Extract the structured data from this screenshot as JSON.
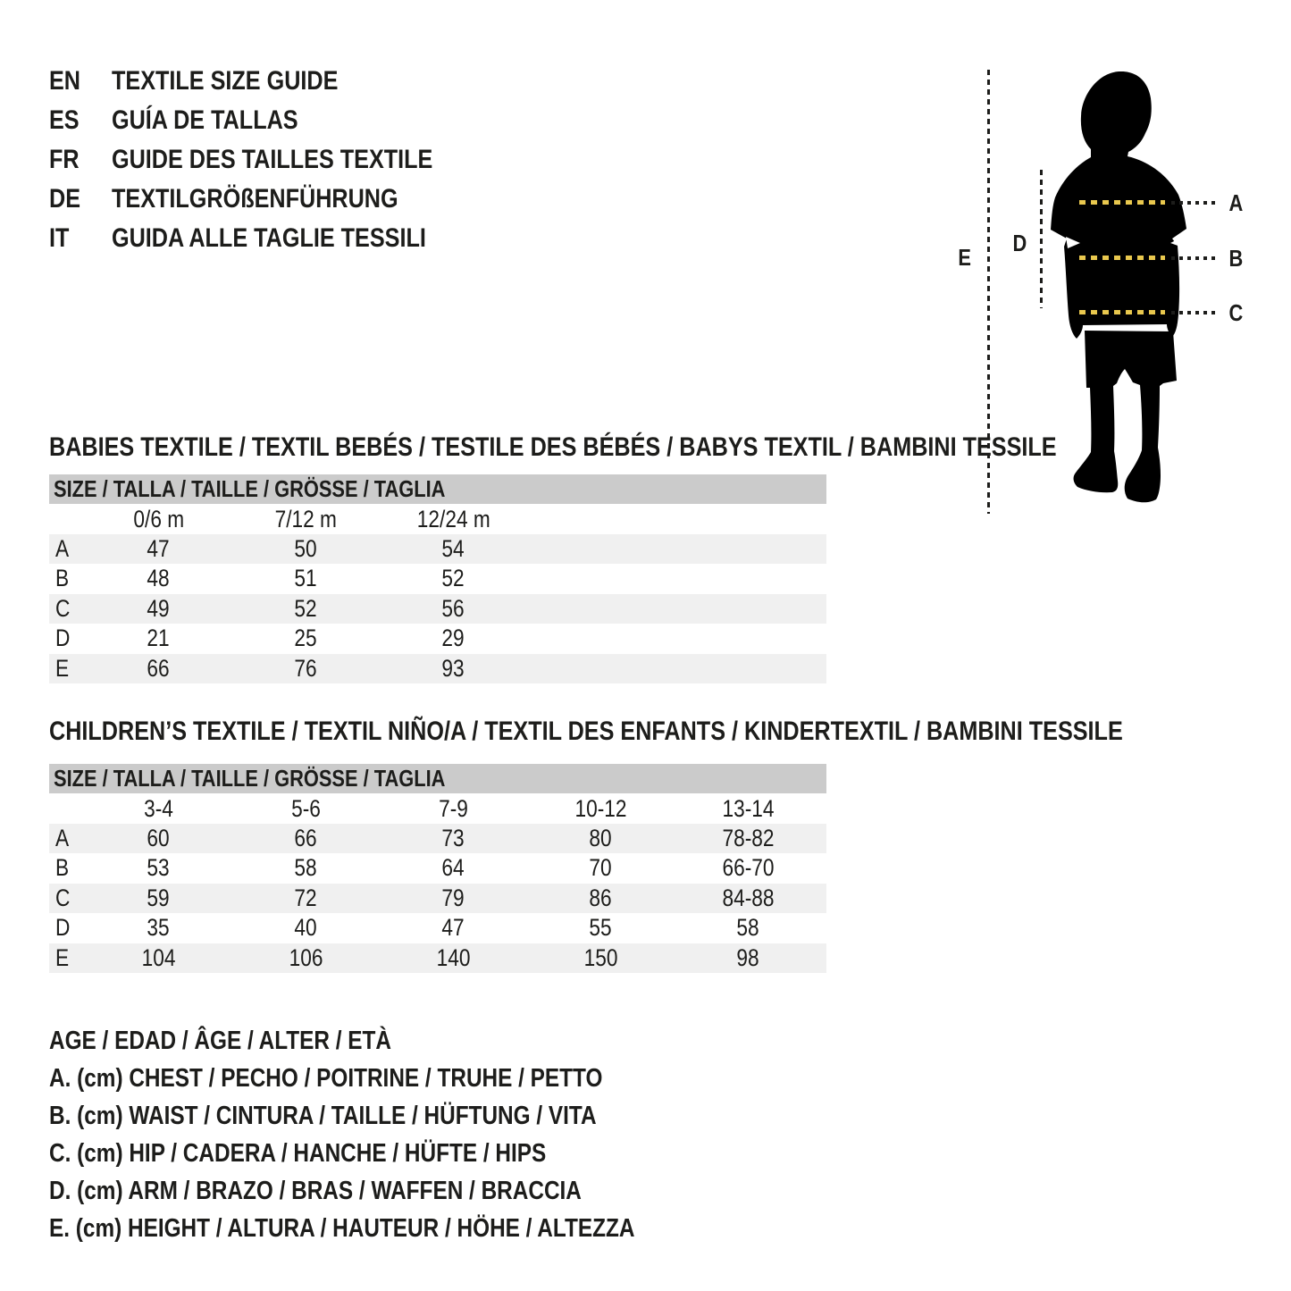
{
  "colors": {
    "text": "#1d1d1b",
    "bar_bg": "#cbcbcb",
    "row_shade": "#f0f0f0",
    "dash_yellow": "#e9c84e",
    "silhouette": "#000000",
    "page_bg": "#ffffff"
  },
  "header": {
    "languages": [
      {
        "code": "EN",
        "title": "TEXTILE SIZE GUIDE"
      },
      {
        "code": "ES",
        "title": "GUÍA DE TALLAS"
      },
      {
        "code": "FR",
        "title": "GUIDE DES TAILLES TEXTILE"
      },
      {
        "code": "DE",
        "title": "TEXTILGRÖßENFÜHRUNG"
      },
      {
        "code": "IT",
        "title": "GUIDA ALLE TAGLIE TESSILI"
      }
    ]
  },
  "figure": {
    "measure_labels": [
      "A",
      "B",
      "C",
      "D",
      "E"
    ]
  },
  "babies": {
    "title": "BABIES TEXTILE / TEXTIL BEBÉS / TESTILE DES BÉBÉS / BABYS TEXTIL / BAMBINI TESSILE",
    "size_header": "SIZE / TALLA / TAILLE / GRÖSSE / TAGLIA",
    "columns": [
      "0/6 m",
      "7/12 m",
      "12/24 m"
    ],
    "rows": [
      {
        "label": "A",
        "values": [
          "47",
          "50",
          "54"
        ]
      },
      {
        "label": "B",
        "values": [
          "48",
          "51",
          "52"
        ]
      },
      {
        "label": "C",
        "values": [
          "49",
          "52",
          "56"
        ]
      },
      {
        "label": "D",
        "values": [
          "21",
          "25",
          "29"
        ]
      },
      {
        "label": "E",
        "values": [
          "66",
          "76",
          "93"
        ]
      }
    ]
  },
  "children": {
    "title": "CHILDREN’S TEXTILE / TEXTIL NIÑO/A / TEXTIL DES ENFANTS / KINDERTEXTIL / BAMBINI TESSILE",
    "size_header": "SIZE / TALLA / TAILLE / GRÖSSE / TAGLIA",
    "columns": [
      "3-4",
      "5-6",
      "7-9",
      "10-12",
      "13-14"
    ],
    "rows": [
      {
        "label": "A",
        "values": [
          "60",
          "66",
          "73",
          "80",
          "78-82"
        ]
      },
      {
        "label": "B",
        "values": [
          "53",
          "58",
          "64",
          "70",
          "66-70"
        ]
      },
      {
        "label": "C",
        "values": [
          "59",
          "72",
          "79",
          "86",
          "84-88"
        ]
      },
      {
        "label": "D",
        "values": [
          "35",
          "40",
          "47",
          "55",
          "58"
        ]
      },
      {
        "label": "E",
        "values": [
          "104",
          "106",
          "140",
          "150",
          "98"
        ]
      }
    ]
  },
  "legend": {
    "lines": [
      "AGE / EDAD / ÂGE / ALTER / ETÀ",
      "A. (cm) CHEST / PECHO / POITRINE / TRUHE / PETTO",
      "B. (cm) WAIST / CINTURA / TAILLE / HÜFTUNG / VITA",
      "C. (cm) HIP / CADERA / HANCHE / HÜFTE / HIPS",
      "D. (cm) ARM / BRAZO / BRAS / WAFFEN / BRACCIA",
      "E. (cm) HEIGHT / ALTURA / HAUTEUR / HÖHE / ALTEZZA"
    ]
  }
}
